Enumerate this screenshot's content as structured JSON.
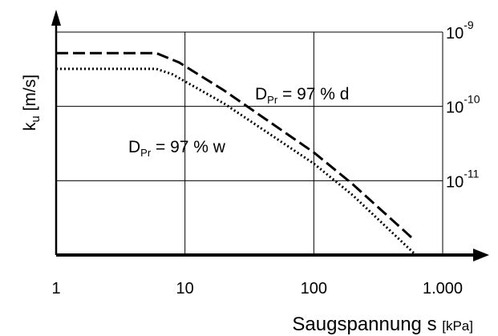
{
  "chart_data": {
    "type": "line",
    "x_scale": "log",
    "y_scale": "log",
    "xlim": [
      1,
      1000
    ],
    "ylim": [
      1e-12,
      1e-09
    ],
    "grid": true,
    "x_tick_labels": [
      "1",
      "10",
      "100",
      "1.000"
    ],
    "x_tick_values": [
      1,
      10,
      100,
      1000
    ],
    "y_tick_values": [
      1e-09,
      1e-10,
      1e-11
    ],
    "y_tick_labels": [
      {
        "base": "10",
        "exp": "-9"
      },
      {
        "base": "10",
        "exp": "-10"
      },
      {
        "base": "10",
        "exp": "-11"
      }
    ],
    "xlabel": {
      "main": "Saugspannung s",
      "unit": "[kPa]"
    },
    "ylabel": {
      "base": "k",
      "sub": "u",
      "unit": " [m/s]"
    },
    "series": [
      {
        "label": {
          "pre": "D",
          "sub": "Pr",
          "post": " = 97 % d"
        },
        "style": "dashed",
        "x": [
          1,
          6,
          9,
          20,
          100,
          200,
          600
        ],
        "y": [
          5.2e-10,
          5.2e-10,
          3.9e-10,
          1.65e-10,
          2.4e-11,
          9e-12,
          1.6e-12
        ]
      },
      {
        "label": {
          "pre": "D",
          "sub": "Pr",
          "post": " = 97 % w"
        },
        "style": "dotted",
        "x": [
          1,
          6,
          8,
          20,
          100,
          200,
          620
        ],
        "y": [
          3.2e-10,
          3.2e-10,
          2.7e-10,
          1.1e-10,
          1.7e-11,
          6.4e-12,
          1e-12
        ]
      }
    ]
  }
}
